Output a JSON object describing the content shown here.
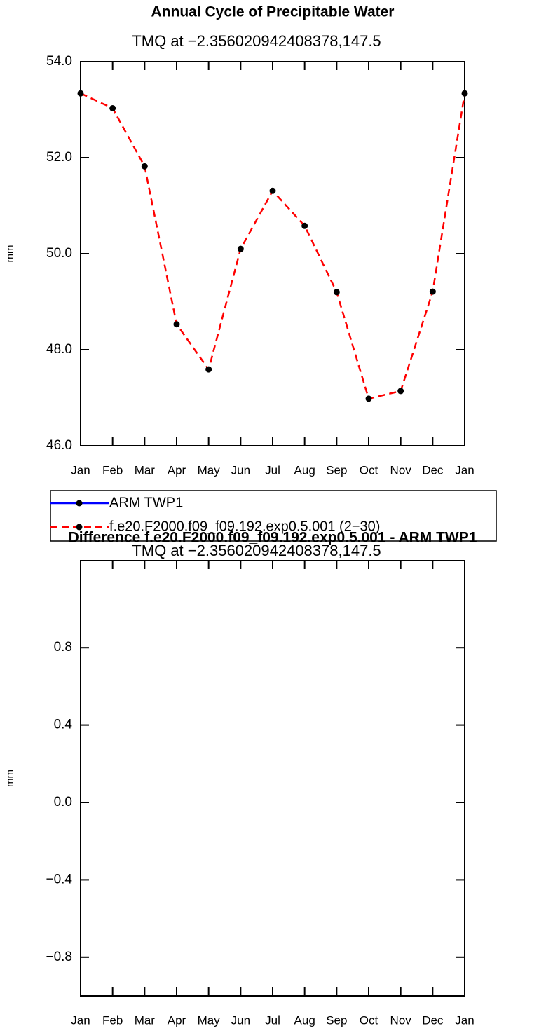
{
  "chart_data": [
    {
      "type": "line",
      "title": "Annual Cycle of Precipitable Water",
      "subtitle": "TMQ at −2.356020942408378,147.5",
      "y_label": "mm",
      "categories": [
        "Jan",
        "Feb",
        "Mar",
        "Apr",
        "May",
        "Jun",
        "Jul",
        "Aug",
        "Sep",
        "Oct",
        "Nov",
        "Dec",
        "Jan"
      ],
      "ylim": [
        46,
        54
      ],
      "yticks": [
        {
          "value": 46,
          "label": "46.0"
        },
        {
          "value": 48,
          "label": "48.0"
        },
        {
          "value": 50,
          "label": "50.0"
        },
        {
          "value": 52,
          "label": "52.0"
        },
        {
          "value": 54,
          "label": "54.0"
        }
      ],
      "legend": "below",
      "series": [
        {
          "name": "ARM TWP1",
          "color": "#0000ff",
          "line_style": "solid",
          "marker": "circle",
          "values": [
            null,
            null,
            null,
            null,
            null,
            null,
            null,
            null,
            null,
            null,
            null,
            null,
            null
          ]
        },
        {
          "name": "f.e20.F2000.f09_f09.192.exp0.5.001 (2−30)",
          "color": "#ff0000",
          "line_style": "dashed",
          "marker": "circle",
          "values": [
            53.34,
            53.03,
            51.82,
            48.53,
            47.59,
            50.1,
            51.31,
            50.58,
            49.2,
            46.98,
            47.14,
            49.21,
            53.34
          ]
        }
      ]
    },
    {
      "type": "line",
      "title": "Difference f.e20.F2000.f09_f09.192.exp0.5.001 - ARM TWP1",
      "subtitle": "TMQ at −2.356020942408378,147.5",
      "y_label": "mm",
      "categories": [
        "Jan",
        "Feb",
        "Mar",
        "Apr",
        "May",
        "Jun",
        "Jul",
        "Aug",
        "Sep",
        "Oct",
        "Nov",
        "Dec",
        "Jan"
      ],
      "ylim": [
        -1,
        1.25
      ],
      "yticks": [
        {
          "value": -0.8,
          "label": "−0.8"
        },
        {
          "value": -0.4,
          "label": "−0.4"
        },
        {
          "value": 0,
          "label": "0.0"
        },
        {
          "value": 0.4,
          "label": "0.4"
        },
        {
          "value": 0.8,
          "label": "0.8"
        }
      ]
    }
  ]
}
